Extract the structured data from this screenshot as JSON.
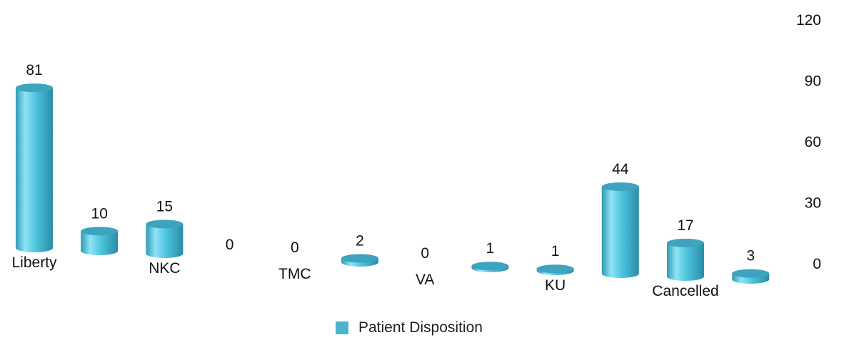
{
  "chart_data": {
    "type": "bar",
    "style": "3d-cylinder",
    "categories": [
      "Liberty",
      "",
      "NKC",
      "",
      "TMC",
      "",
      "VA",
      "",
      "KU",
      "",
      "Cancelled",
      ""
    ],
    "series": [
      {
        "name": "Patient Disposition",
        "values": [
          81,
          10,
          15,
          0,
          0,
          2,
          0,
          1,
          1,
          44,
          17,
          3
        ]
      }
    ],
    "yaxis": {
      "position": "right",
      "ticks": [
        "120",
        "90",
        "60",
        "30",
        "0"
      ],
      "ylim": [
        0,
        120
      ]
    },
    "legend": "bottom-center",
    "grid": false,
    "colors": {
      "bar": "#4cc3dd",
      "bar_top": "#3ea3bc",
      "legend_swatch": "#4cb3cc"
    }
  }
}
